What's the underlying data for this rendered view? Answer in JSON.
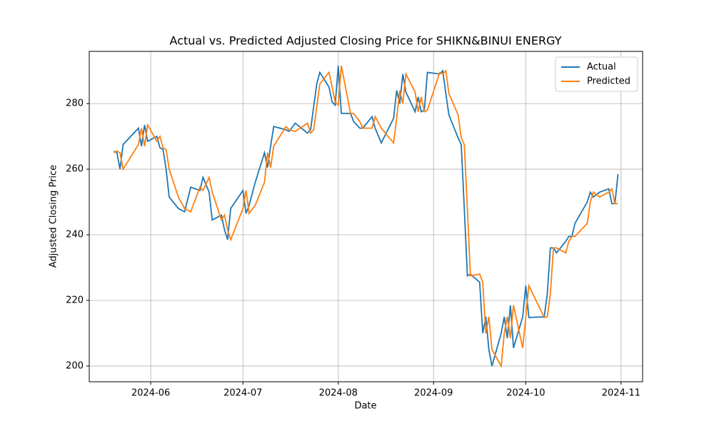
{
  "chart_data": {
    "type": "line",
    "title": "Actual vs. Predicted Adjusted Closing Price for SHIKN&BINUI ENERGY",
    "x_label": "Date",
    "y_label": "Adjusted Closing Price",
    "x": [
      "2024-05-20",
      "2024-05-21",
      "2024-05-22",
      "2024-05-23",
      "2024-05-28",
      "2024-05-29",
      "2024-05-30",
      "2024-05-31",
      "2024-06-03",
      "2024-06-04",
      "2024-06-05",
      "2024-06-06",
      "2024-06-07",
      "2024-06-10",
      "2024-06-12",
      "2024-06-14",
      "2024-06-17",
      "2024-06-18",
      "2024-06-20",
      "2024-06-21",
      "2024-06-24",
      "2024-06-25",
      "2024-06-26",
      "2024-06-27",
      "2024-07-01",
      "2024-07-02",
      "2024-07-03",
      "2024-07-05",
      "2024-07-08",
      "2024-07-09",
      "2024-07-10",
      "2024-07-11",
      "2024-07-15",
      "2024-07-16",
      "2024-07-18",
      "2024-07-22",
      "2024-07-23",
      "2024-07-24",
      "2024-07-25",
      "2024-07-26",
      "2024-07-29",
      "2024-07-30",
      "2024-07-31",
      "2024-08-01",
      "2024-08-02",
      "2024-08-05",
      "2024-08-06",
      "2024-08-08",
      "2024-08-09",
      "2024-08-12",
      "2024-08-13",
      "2024-08-15",
      "2024-08-19",
      "2024-08-20",
      "2024-08-21",
      "2024-08-22",
      "2024-08-23",
      "2024-08-26",
      "2024-08-27",
      "2024-08-28",
      "2024-08-29",
      "2024-08-30",
      "2024-09-03",
      "2024-09-04",
      "2024-09-05",
      "2024-09-06",
      "2024-09-09",
      "2024-09-10",
      "2024-09-11",
      "2024-09-12",
      "2024-09-13",
      "2024-09-16",
      "2024-09-17",
      "2024-09-18",
      "2024-09-19",
      "2024-09-20",
      "2024-09-23",
      "2024-09-24",
      "2024-09-25",
      "2024-09-26",
      "2024-09-27",
      "2024-09-30",
      "2024-10-01",
      "2024-10-02",
      "2024-10-07",
      "2024-10-08",
      "2024-10-09",
      "2024-10-10",
      "2024-10-11",
      "2024-10-14",
      "2024-10-15",
      "2024-10-16",
      "2024-10-17",
      "2024-10-21",
      "2024-10-22",
      "2024-10-23",
      "2024-10-25",
      "2024-10-28",
      "2024-10-29",
      "2024-10-30",
      "2024-10-31"
    ],
    "series": [
      {
        "name": "Actual",
        "color": "#1f77b4",
        "values": [
          265.5,
          265,
          260,
          267.5,
          272.5,
          267,
          273.5,
          268.5,
          270,
          266.5,
          266,
          260,
          251.5,
          248,
          247,
          254.5,
          253.5,
          257.5,
          253,
          244.5,
          246,
          241.5,
          238.5,
          248,
          253.5,
          246.5,
          249,
          256,
          265,
          260.5,
          267,
          273,
          272,
          271.5,
          274,
          271,
          272,
          279,
          286,
          289.5,
          285,
          280.5,
          279.5,
          291.5,
          277,
          277,
          274.5,
          272.5,
          272.5,
          276,
          272.5,
          268,
          275.5,
          284,
          280,
          289,
          283.5,
          277.5,
          282,
          277.5,
          278,
          289.5,
          289,
          290,
          283,
          276.5,
          269.5,
          267.5,
          248,
          227.5,
          228,
          225.5,
          210,
          215,
          205,
          200,
          210,
          215,
          208.5,
          218.5,
          205.5,
          215,
          224.5,
          214.8,
          215,
          222,
          236,
          236,
          234.5,
          238,
          239.5,
          239.5,
          243.5,
          250,
          253,
          251.5,
          253,
          254,
          249.5,
          249.5,
          258.5
        ]
      },
      {
        "name": "Predicted",
        "color": "#ff7f0e",
        "values": [
          265,
          265.5,
          265,
          260,
          267.5,
          272.5,
          267,
          273.5,
          268.5,
          270,
          266.5,
          266,
          260,
          251.5,
          248,
          247,
          254.5,
          253.5,
          257.5,
          253,
          244.5,
          246,
          241.5,
          238.5,
          248,
          253.5,
          246.5,
          249,
          256,
          265,
          260.5,
          267,
          273,
          272,
          271.5,
          274,
          271,
          272,
          279,
          286,
          289.5,
          285,
          280.5,
          279.5,
          291.5,
          277,
          277,
          274.5,
          272.5,
          272.5,
          276,
          272.5,
          268,
          275.5,
          284,
          280,
          289,
          283.5,
          277.5,
          282,
          277.5,
          278,
          289.5,
          289,
          290,
          283,
          276.5,
          269.5,
          267.5,
          248,
          227.5,
          228,
          225.5,
          210,
          215,
          205,
          200,
          210,
          215,
          208.5,
          218.5,
          205.5,
          215,
          224.5,
          214.8,
          215,
          222,
          236,
          236,
          234.5,
          238,
          239.5,
          239.5,
          243.5,
          250,
          253,
          251.5,
          253,
          254,
          249.5,
          249.5
        ]
      }
    ],
    "xlim": [
      "2024-05-12",
      "2024-11-08"
    ],
    "xticks": [
      {
        "value": "2024-06-01",
        "label": "2024-06"
      },
      {
        "value": "2024-07-01",
        "label": "2024-07"
      },
      {
        "value": "2024-08-01",
        "label": "2024-08"
      },
      {
        "value": "2024-09-01",
        "label": "2024-09"
      },
      {
        "value": "2024-10-01",
        "label": "2024-10"
      },
      {
        "value": "2024-11-01",
        "label": "2024-11"
      }
    ],
    "ylim": [
      195.2,
      295.9
    ],
    "yticks": [
      200,
      220,
      240,
      260,
      280
    ],
    "grid": true,
    "legend": "upper right"
  }
}
